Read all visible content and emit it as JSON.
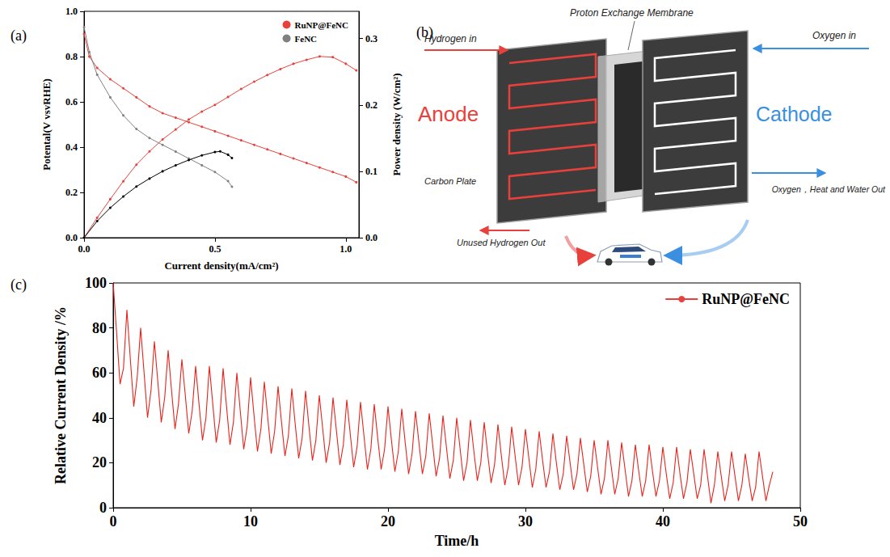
{
  "chart_data": [
    {
      "panel": "(a)",
      "type": "line",
      "marker": "circle",
      "grid": false,
      "legend": "upper right",
      "x_label": "Current density(mA/cm²)",
      "y_label": "Potental(V vsvRHE)",
      "y2_label": "Power density (W/cm²)",
      "xlim": [
        0,
        1.05
      ],
      "xticks": [
        {
          "value": 0,
          "label": "0.0"
        },
        {
          "value": 0.5,
          "label": "0.5"
        },
        {
          "value": 1,
          "label": "1.0"
        }
      ],
      "ylim": [
        0,
        1
      ],
      "yticks": [
        {
          "value": 0,
          "label": "0.0"
        },
        {
          "value": 0.2,
          "label": "0.2"
        },
        {
          "value": 0.4,
          "label": "0.4"
        },
        {
          "value": 0.6,
          "label": "0.6"
        },
        {
          "value": 0.8,
          "label": "0.8"
        },
        {
          "value": 1,
          "label": "1.0"
        }
      ],
      "y2lim": [
        0,
        0.341
      ],
      "y2ticks": [
        {
          "value": 0,
          "label": "0.0"
        },
        {
          "value": 0.1,
          "label": "0.1"
        },
        {
          "value": 0.2,
          "label": "0.2"
        },
        {
          "value": 0.3,
          "label": "0.3"
        }
      ],
      "series": [
        {
          "name": "RuNP@FeNC",
          "color": "#e8413b",
          "axis": "y",
          "x": [
            0,
            0.02,
            0.05,
            0.1,
            0.15,
            0.2,
            0.25,
            0.3,
            0.35,
            0.4,
            0.45,
            0.5,
            0.55,
            0.6,
            0.65,
            0.7,
            0.75,
            0.8,
            0.85,
            0.9,
            0.95,
            1.0,
            1.04
          ],
          "values": [
            0.9,
            0.8,
            0.75,
            0.7,
            0.66,
            0.62,
            0.58,
            0.55,
            0.53,
            0.51,
            0.49,
            0.47,
            0.45,
            0.43,
            0.41,
            0.39,
            0.37,
            0.35,
            0.33,
            0.31,
            0.29,
            0.27,
            0.245
          ]
        },
        {
          "name": "RuNP@FeNC",
          "color": "#e8413b",
          "axis": "y2",
          "x": [
            0,
            0.05,
            0.1,
            0.15,
            0.2,
            0.25,
            0.3,
            0.35,
            0.4,
            0.45,
            0.5,
            0.55,
            0.6,
            0.65,
            0.7,
            0.75,
            0.8,
            0.85,
            0.9,
            0.95,
            1.0,
            1.04
          ],
          "values": [
            0,
            0.03,
            0.058,
            0.085,
            0.11,
            0.13,
            0.148,
            0.163,
            0.178,
            0.19,
            0.2,
            0.212,
            0.224,
            0.235,
            0.245,
            0.254,
            0.262,
            0.268,
            0.273,
            0.272,
            0.262,
            0.252
          ]
        },
        {
          "name": "FeNC",
          "color": "#808080",
          "axis": "y",
          "x": [
            0,
            0.02,
            0.05,
            0.1,
            0.15,
            0.2,
            0.25,
            0.3,
            0.35,
            0.4,
            0.45,
            0.5,
            0.55,
            0.565
          ],
          "values": [
            0.93,
            0.82,
            0.72,
            0.62,
            0.54,
            0.48,
            0.44,
            0.41,
            0.38,
            0.35,
            0.32,
            0.29,
            0.25,
            0.225
          ]
        },
        {
          "name": "FeNC",
          "color": "#000000",
          "axis": "y2",
          "x": [
            0,
            0.05,
            0.1,
            0.15,
            0.2,
            0.25,
            0.3,
            0.35,
            0.4,
            0.45,
            0.5,
            0.52,
            0.55,
            0.565
          ],
          "values": [
            0,
            0.025,
            0.045,
            0.062,
            0.077,
            0.089,
            0.1,
            0.109,
            0.117,
            0.124,
            0.129,
            0.13,
            0.125,
            0.12
          ]
        }
      ]
    },
    {
      "panel": "(c)",
      "type": "line",
      "grid": false,
      "legend": "upper right",
      "x_label": "Time/h",
      "y_label": "Relative Current Density /%",
      "xlim": [
        0,
        50
      ],
      "xticks": [
        0,
        10,
        20,
        30,
        40,
        50
      ],
      "ylim": [
        0,
        100
      ],
      "yticks": [
        0,
        20,
        40,
        60,
        80,
        100
      ],
      "series": [
        {
          "name": "RuNP@FeNC",
          "color": "#e8231b",
          "x": [
            0,
            0.25,
            0.5,
            0.75,
            1,
            1.25,
            1.5,
            1.75,
            2,
            2.25,
            2.5,
            2.75,
            3,
            3.25,
            3.5,
            3.75,
            4,
            4.25,
            4.5,
            4.75,
            5,
            5.25,
            5.5,
            5.75,
            6,
            6.25,
            6.5,
            6.75,
            7,
            7.25,
            7.5,
            7.75,
            8,
            8.25,
            8.5,
            8.75,
            9,
            9.25,
            9.5,
            9.75,
            10,
            10.25,
            10.5,
            10.75,
            11,
            11.25,
            11.5,
            11.75,
            12,
            12.25,
            12.5,
            12.75,
            13,
            13.25,
            13.5,
            13.75,
            14,
            14.25,
            14.5,
            14.75,
            15,
            15.25,
            15.5,
            15.75,
            16,
            16.25,
            16.5,
            16.75,
            17,
            17.25,
            17.5,
            17.75,
            18,
            18.25,
            18.5,
            18.75,
            19,
            19.25,
            19.5,
            19.75,
            20,
            20.25,
            20.5,
            20.75,
            21,
            21.25,
            21.5,
            21.75,
            22,
            22.25,
            22.5,
            22.75,
            23,
            23.25,
            23.5,
            23.75,
            24,
            24.25,
            24.5,
            24.75,
            25,
            25.25,
            25.5,
            25.75,
            26,
            26.25,
            26.5,
            26.75,
            27,
            27.25,
            27.5,
            27.75,
            28,
            28.25,
            28.5,
            28.75,
            29,
            29.25,
            29.5,
            29.75,
            30,
            30.25,
            30.5,
            30.75,
            31,
            31.25,
            31.5,
            31.75,
            32,
            32.25,
            32.5,
            32.75,
            33,
            33.25,
            33.5,
            33.75,
            34,
            34.25,
            34.5,
            34.75,
            35,
            35.25,
            35.5,
            35.75,
            36,
            36.25,
            36.5,
            36.75,
            37,
            37.25,
            37.5,
            37.75,
            38,
            38.25,
            38.5,
            38.75,
            39,
            39.25,
            39.5,
            39.75,
            40,
            40.25,
            40.5,
            40.75,
            41,
            41.25,
            41.5,
            41.75,
            42,
            42.25,
            42.5,
            42.75,
            43,
            43.25,
            43.5,
            43.75,
            44,
            44.25,
            44.5,
            44.75,
            45,
            45.25,
            45.5,
            45.75,
            46,
            46.25,
            46.5,
            46.75,
            47,
            47.25,
            47.5,
            47.75,
            48
          ],
          "values": [
            100,
            78,
            55,
            62,
            88,
            66,
            45,
            58,
            80,
            60,
            40,
            52,
            74,
            56,
            38,
            49,
            70,
            52,
            35,
            46,
            66,
            50,
            33,
            43,
            63,
            46,
            30,
            40,
            63,
            46,
            29,
            39,
            62,
            45,
            28,
            38,
            60,
            43,
            26,
            36,
            58,
            41,
            25,
            35,
            56,
            40,
            24,
            34,
            54,
            38,
            23,
            32,
            53,
            37,
            22,
            31,
            52,
            36,
            21,
            30,
            50,
            35,
            20,
            29,
            49,
            34,
            19,
            28,
            48,
            33,
            18,
            27,
            47,
            32,
            17,
            26,
            46,
            31,
            17,
            26,
            45,
            30,
            16,
            25,
            44,
            29,
            15,
            24,
            43,
            29,
            15,
            23,
            42,
            28,
            14,
            22,
            41,
            27,
            13,
            21,
            40,
            26,
            12,
            20,
            39,
            25,
            12,
            20,
            38,
            24,
            11,
            19,
            37,
            23,
            10,
            18,
            36,
            23,
            10,
            18,
            35,
            22,
            9,
            17,
            34,
            21,
            9,
            16,
            33,
            20,
            8,
            15,
            32,
            20,
            8,
            15,
            31,
            19,
            7,
            14,
            30,
            18,
            6,
            13,
            30,
            18,
            6,
            13,
            29,
            17,
            5,
            12,
            28,
            16,
            5,
            12,
            28,
            16,
            5,
            12,
            27,
            15,
            4,
            11,
            27,
            15,
            4,
            11,
            26,
            15,
            4,
            10,
            26,
            14,
            2,
            10,
            25,
            14,
            3,
            10,
            25,
            14,
            3,
            10,
            24,
            13,
            3,
            9,
            25,
            14,
            3,
            10,
            16
          ]
        }
      ]
    }
  ],
  "diagram": {
    "panel": "(b)",
    "anode": "Anode",
    "cathode": "Cathode",
    "membrane": "Proton Exchange Membrane",
    "plate": "Carbon Plate",
    "hydrogen_in": "Hydrogen in",
    "hydrogen_out": "Unused Hydrogen Out",
    "oxygen_in": "Oxygen in",
    "oxygen_out": "Oxygen，Heat and Water Out"
  }
}
